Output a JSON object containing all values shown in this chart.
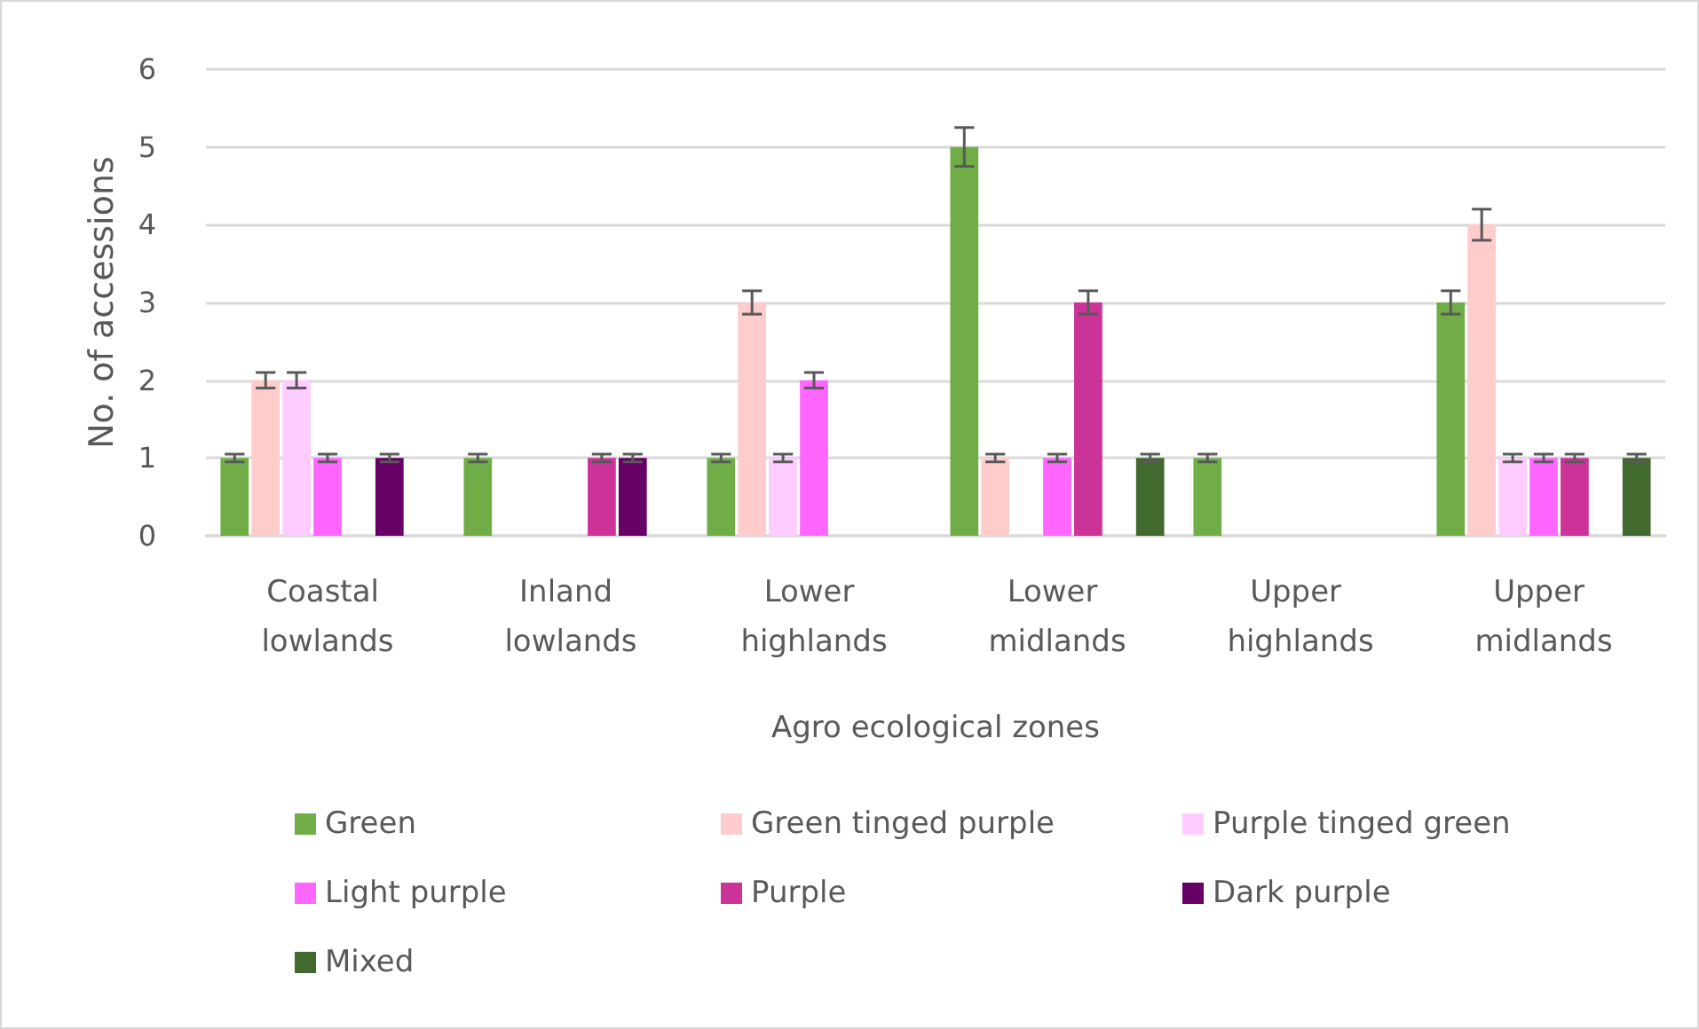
{
  "chart_data": {
    "type": "bar",
    "xlabel": "Agro ecological zones",
    "ylabel": "No. of accessions",
    "categories": [
      "Coastal lowlands",
      "Inland lowlands",
      "Lower highlands",
      "Lower midlands",
      "Upper highlands",
      "Upper midlands"
    ],
    "series": [
      {
        "name": "Green",
        "color": "#70ad47",
        "values": [
          1,
          1,
          1,
          5,
          1,
          3
        ],
        "errors": [
          0.05,
          0.05,
          0.05,
          0.25,
          0.05,
          0.15
        ]
      },
      {
        "name": "Green tinged purple",
        "color": "#ffcccc",
        "values": [
          2,
          null,
          3,
          1,
          null,
          4
        ],
        "errors": [
          0.1,
          null,
          0.15,
          0.05,
          null,
          0.2
        ]
      },
      {
        "name": "Purple tinged green",
        "color": "#ffccff",
        "values": [
          2,
          null,
          1,
          null,
          null,
          1
        ],
        "errors": [
          0.1,
          null,
          0.05,
          null,
          null,
          0.05
        ]
      },
      {
        "name": "Light purple",
        "color": "#ff66ff",
        "values": [
          1,
          null,
          2,
          1,
          null,
          1
        ],
        "errors": [
          0.05,
          null,
          0.1,
          0.05,
          null,
          0.05
        ]
      },
      {
        "name": "Purple",
        "color": "#cc3399",
        "values": [
          null,
          1,
          null,
          3,
          null,
          1
        ],
        "errors": [
          null,
          0.05,
          null,
          0.15,
          null,
          0.05
        ]
      },
      {
        "name": "Dark purple",
        "color": "#660066",
        "values": [
          1,
          1,
          null,
          null,
          null,
          null
        ],
        "errors": [
          0.05,
          0.05,
          null,
          null,
          null,
          null
        ]
      },
      {
        "name": "Mixed",
        "color": "#426a2e",
        "values": [
          null,
          null,
          null,
          1,
          null,
          1
        ],
        "errors": [
          null,
          null,
          null,
          0.05,
          null,
          0.05
        ]
      }
    ],
    "ylim": [
      0,
      6
    ],
    "yticks": [
      0,
      1,
      2,
      3,
      4,
      5,
      6
    ],
    "grid": "y",
    "legend": "bottom"
  }
}
